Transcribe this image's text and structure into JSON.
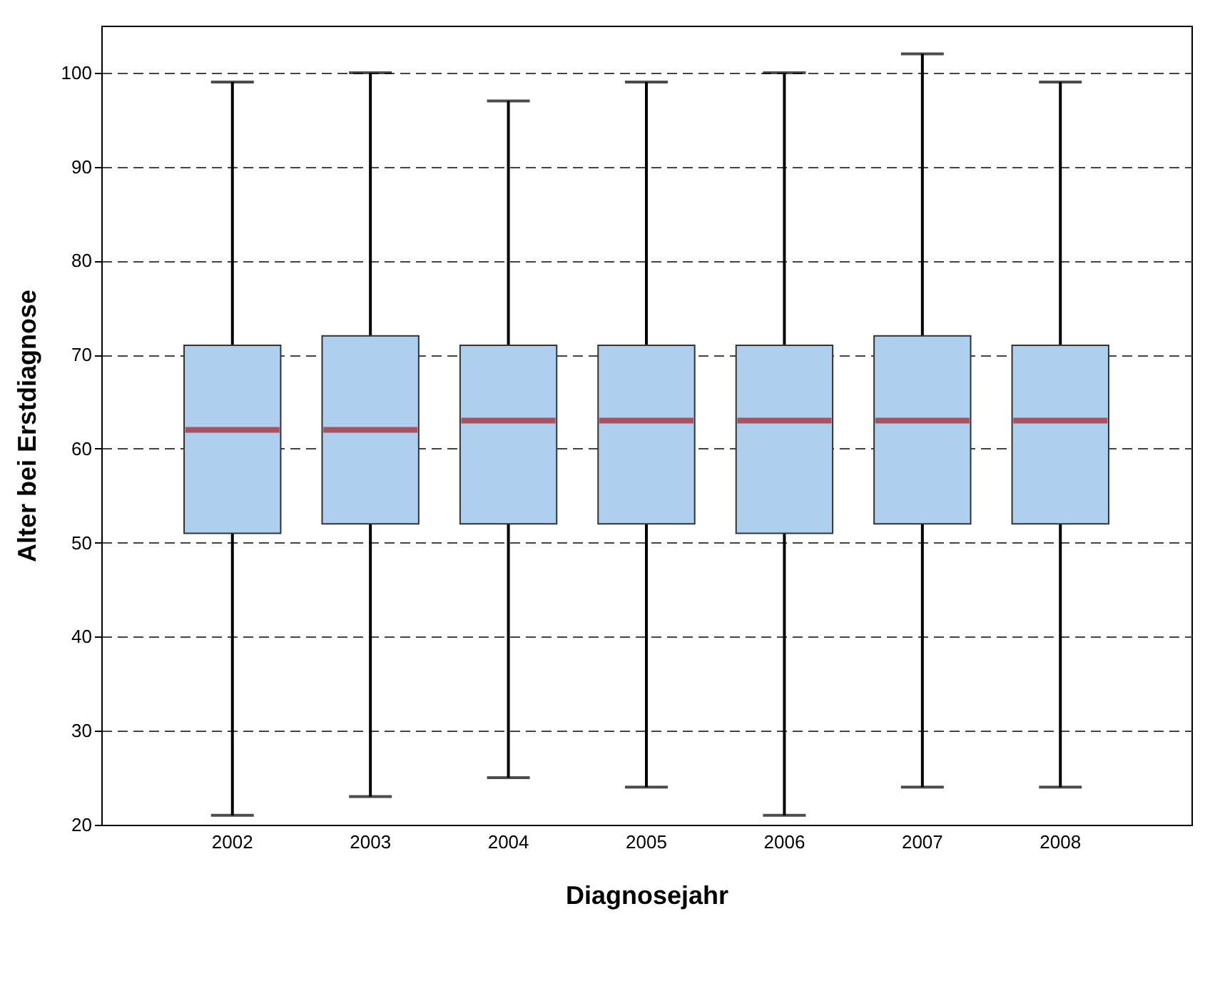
{
  "chart_data": {
    "type": "box",
    "xlabel": "Diagnosejahr",
    "ylabel": "Alter bei Erstdiagnose",
    "categories": [
      "2002",
      "2003",
      "2004",
      "2005",
      "2006",
      "2007",
      "2008"
    ],
    "series": [
      {
        "color": "#aed0ee",
        "boxes": [
          {
            "low": 21,
            "q1": 51,
            "median": 62,
            "q3": 71,
            "high": 99
          },
          {
            "low": 23,
            "q1": 52,
            "median": 62,
            "q3": 72,
            "high": 100
          },
          {
            "low": 25,
            "q1": 52,
            "median": 63,
            "q3": 71,
            "high": 97
          },
          {
            "low": 24,
            "q1": 52,
            "median": 63,
            "q3": 71,
            "high": 99
          },
          {
            "low": 21,
            "q1": 51,
            "median": 63,
            "q3": 71,
            "high": 100
          },
          {
            "low": 24,
            "q1": 52,
            "median": 63,
            "q3": 72,
            "high": 102
          },
          {
            "low": 24,
            "q1": 52,
            "median": 63,
            "q3": 71,
            "high": 99
          }
        ]
      }
    ],
    "ylim": [
      20,
      105
    ],
    "yticks": [
      20,
      30,
      40,
      50,
      60,
      70,
      80,
      90,
      100
    ],
    "grid": "y"
  }
}
